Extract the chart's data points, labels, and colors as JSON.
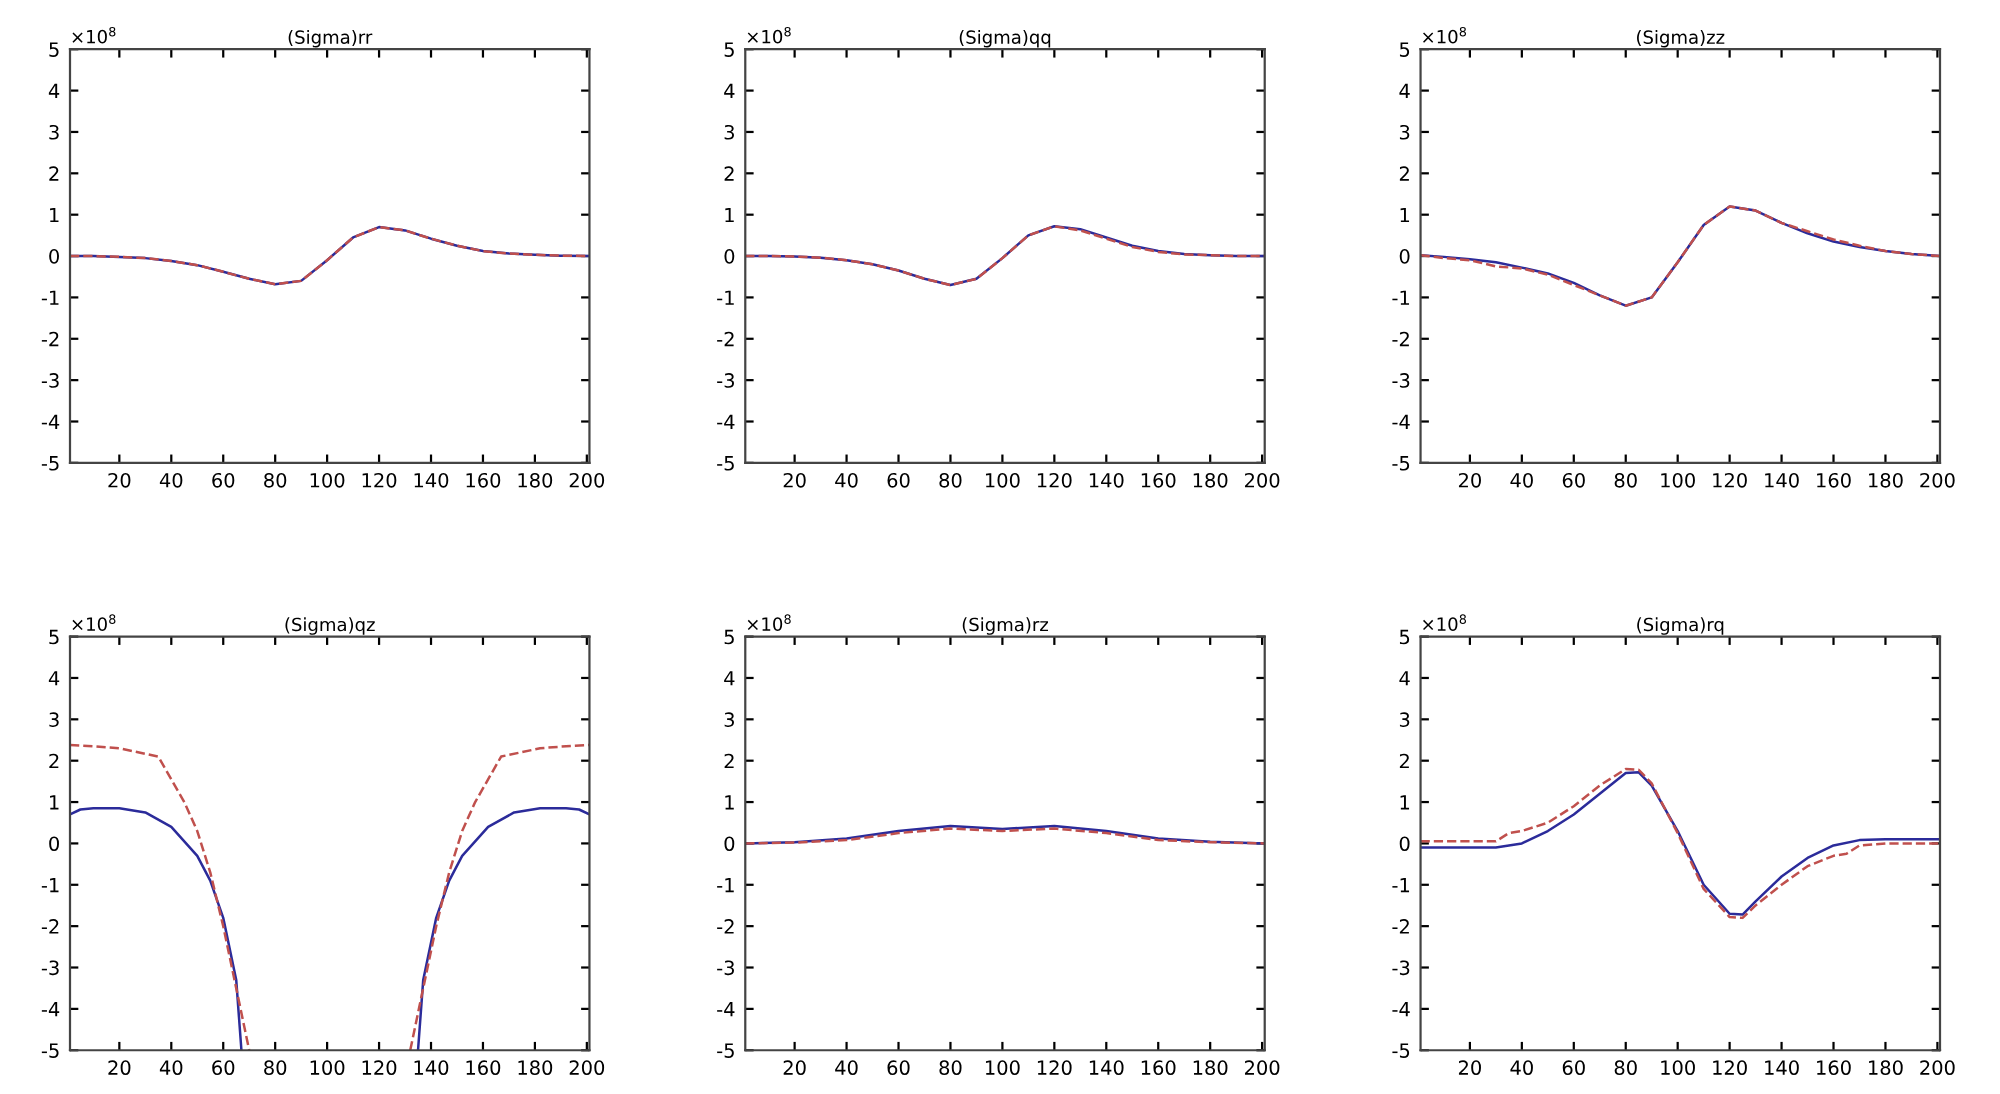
{
  "chart_data": [
    {
      "type": "line",
      "title": "(Sigma)rr",
      "annotations": [
        "×10$^{8}$"
      ],
      "xlim": [
        1,
        201
      ],
      "xticks": [
        20,
        40,
        60,
        80,
        100,
        120,
        140,
        160,
        180,
        200
      ],
      "ylim": [
        -5,
        5
      ],
      "yticks": [
        -5,
        -4,
        -3,
        -2,
        -1,
        0,
        1,
        2,
        3,
        4,
        5
      ],
      "grid": false,
      "legend": false,
      "x": [
        1,
        10,
        20,
        30,
        40,
        50,
        60,
        70,
        80,
        90,
        100,
        110,
        120,
        130,
        140,
        150,
        160,
        170,
        180,
        190,
        201
      ],
      "series": [
        {
          "color": "#2b2b9a",
          "line_style": "solid",
          "values": [
            0,
            0,
            -0.02,
            -0.05,
            -0.12,
            -0.22,
            -0.38,
            -0.55,
            -0.68,
            -0.6,
            -0.1,
            0.45,
            0.7,
            0.62,
            0.42,
            0.25,
            0.12,
            0.06,
            0.03,
            0.01,
            0
          ]
        },
        {
          "color": "#c0504d",
          "line_style": "dashed",
          "values": [
            0,
            0,
            -0.02,
            -0.05,
            -0.12,
            -0.22,
            -0.38,
            -0.55,
            -0.68,
            -0.6,
            -0.1,
            0.45,
            0.7,
            0.62,
            0.42,
            0.25,
            0.12,
            0.06,
            0.03,
            0.01,
            0
          ]
        }
      ]
    },
    {
      "type": "line",
      "title": "(Sigma)qq",
      "annotations": [
        "×10$^{8}$"
      ],
      "xlim": [
        1,
        201
      ],
      "xticks": [
        20,
        40,
        60,
        80,
        100,
        120,
        140,
        160,
        180,
        200
      ],
      "ylim": [
        -5,
        5
      ],
      "yticks": [
        -5,
        -4,
        -3,
        -2,
        -1,
        0,
        1,
        2,
        3,
        4,
        5
      ],
      "grid": false,
      "legend": false,
      "x": [
        1,
        10,
        20,
        30,
        40,
        50,
        60,
        70,
        80,
        90,
        100,
        110,
        120,
        130,
        140,
        150,
        160,
        170,
        180,
        190,
        201
      ],
      "series": [
        {
          "color": "#2b2b9a",
          "line_style": "solid",
          "values": [
            0,
            0,
            -0.01,
            -0.04,
            -0.1,
            -0.2,
            -0.35,
            -0.55,
            -0.7,
            -0.55,
            -0.05,
            0.5,
            0.72,
            0.65,
            0.45,
            0.25,
            0.12,
            0.05,
            0.02,
            0,
            0
          ]
        },
        {
          "color": "#c0504d",
          "line_style": "dashed",
          "values": [
            0,
            0,
            -0.01,
            -0.04,
            -0.1,
            -0.2,
            -0.35,
            -0.55,
            -0.7,
            -0.55,
            -0.05,
            0.5,
            0.72,
            0.62,
            0.42,
            0.22,
            0.1,
            0.04,
            0.02,
            0,
            0
          ]
        }
      ]
    },
    {
      "type": "line",
      "title": "(Sigma)zz",
      "annotations": [
        "×10$^{8}$"
      ],
      "xlim": [
        1,
        201
      ],
      "xticks": [
        20,
        40,
        60,
        80,
        100,
        120,
        140,
        160,
        180,
        200
      ],
      "ylim": [
        -5,
        5
      ],
      "yticks": [
        -5,
        -4,
        -3,
        -2,
        -1,
        0,
        1,
        2,
        3,
        4,
        5
      ],
      "grid": false,
      "legend": false,
      "x": [
        1,
        10,
        20,
        30,
        40,
        50,
        60,
        70,
        80,
        90,
        100,
        110,
        120,
        130,
        140,
        150,
        160,
        170,
        180,
        190,
        201
      ],
      "series": [
        {
          "color": "#2b2b9a",
          "line_style": "solid",
          "values": [
            0.02,
            -0.02,
            -0.08,
            -0.15,
            -0.28,
            -0.42,
            -0.65,
            -0.95,
            -1.2,
            -1.0,
            -0.15,
            0.75,
            1.2,
            1.1,
            0.8,
            0.55,
            0.35,
            0.22,
            0.12,
            0.05,
            0
          ]
        },
        {
          "color": "#c0504d",
          "line_style": "dashed",
          "values": [
            0.02,
            -0.05,
            -0.1,
            -0.25,
            -0.3,
            -0.45,
            -0.7,
            -0.95,
            -1.2,
            -1.0,
            -0.15,
            0.75,
            1.2,
            1.1,
            0.8,
            0.6,
            0.4,
            0.25,
            0.12,
            0.05,
            0
          ]
        }
      ]
    },
    {
      "type": "line",
      "title": "(Sigma)qz",
      "annotations": [
        "×10$^{8}$"
      ],
      "xlim": [
        1,
        201
      ],
      "xticks": [
        20,
        40,
        60,
        80,
        100,
        120,
        140,
        160,
        180,
        200
      ],
      "ylim": [
        -5,
        5
      ],
      "yticks": [
        -5,
        -4,
        -3,
        -2,
        -1,
        0,
        1,
        2,
        3,
        4,
        5
      ],
      "grid": false,
      "legend": false,
      "series": [
        {
          "color": "#2b2b9a",
          "line_style": "solid",
          "x": [
            1,
            5,
            10,
            20,
            30,
            40,
            50,
            55,
            60,
            65,
            67,
            100,
            135,
            137,
            142,
            147,
            152,
            162,
            172,
            182,
            192,
            197,
            201
          ],
          "values": [
            0.7,
            0.82,
            0.85,
            0.85,
            0.75,
            0.4,
            -0.3,
            -0.9,
            -1.8,
            -3.3,
            -5,
            null,
            -5,
            -3.3,
            -1.8,
            -0.9,
            -0.3,
            0.4,
            0.75,
            0.85,
            0.85,
            0.82,
            0.7
          ]
        },
        {
          "color": "#c0504d",
          "line_style": "dashed",
          "x": [
            1,
            10,
            20,
            35,
            45,
            50,
            55,
            60,
            65,
            70,
            100,
            132,
            137,
            142,
            147,
            152,
            157,
            167,
            182,
            192,
            201
          ],
          "values": [
            2.38,
            2.35,
            2.3,
            2.1,
            1.0,
            0.3,
            -0.7,
            -2.0,
            -3.5,
            -5,
            null,
            -5,
            -3.5,
            -2.0,
            -0.7,
            0.3,
            1.0,
            2.1,
            2.3,
            2.35,
            2.38
          ]
        }
      ]
    },
    {
      "type": "line",
      "title": "(Sigma)rz",
      "annotations": [
        "×10$^{8}$"
      ],
      "xlim": [
        1,
        201
      ],
      "xticks": [
        20,
        40,
        60,
        80,
        100,
        120,
        140,
        160,
        180,
        200
      ],
      "ylim": [
        -5,
        5
      ],
      "yticks": [
        -5,
        -4,
        -3,
        -2,
        -1,
        0,
        1,
        2,
        3,
        4,
        5
      ],
      "grid": false,
      "legend": false,
      "x": [
        1,
        20,
        40,
        60,
        80,
        100,
        120,
        140,
        160,
        180,
        201
      ],
      "series": [
        {
          "color": "#2b2b9a",
          "line_style": "solid",
          "values": [
            0,
            0.03,
            0.12,
            0.3,
            0.42,
            0.35,
            0.42,
            0.3,
            0.12,
            0.04,
            0
          ]
        },
        {
          "color": "#c0504d",
          "line_style": "dashed",
          "values": [
            0,
            0.02,
            0.08,
            0.25,
            0.36,
            0.3,
            0.36,
            0.25,
            0.08,
            0.03,
            0
          ]
        }
      ]
    },
    {
      "type": "line",
      "title": "(Sigma)rq",
      "annotations": [
        "×10$^{8}$"
      ],
      "xlim": [
        1,
        201
      ],
      "xticks": [
        20,
        40,
        60,
        80,
        100,
        120,
        140,
        160,
        180,
        200
      ],
      "ylim": [
        -5,
        5
      ],
      "yticks": [
        -5,
        -4,
        -3,
        -2,
        -1,
        0,
        1,
        2,
        3,
        4,
        5
      ],
      "grid": false,
      "legend": false,
      "series": [
        {
          "color": "#2b2b9a",
          "line_style": "solid",
          "x": [
            1,
            20,
            30,
            40,
            50,
            60,
            70,
            80,
            85,
            90,
            100,
            110,
            120,
            125,
            130,
            140,
            150,
            160,
            170,
            180,
            201
          ],
          "values": [
            -0.1,
            -0.1,
            -0.1,
            0,
            0.3,
            0.7,
            1.2,
            1.7,
            1.72,
            1.4,
            0.3,
            -1.0,
            -1.7,
            -1.72,
            -1.4,
            -0.8,
            -0.35,
            -0.05,
            0.08,
            0.1,
            0.1
          ]
        },
        {
          "color": "#c0504d",
          "line_style": "dashed",
          "x": [
            1,
            20,
            30,
            35,
            40,
            50,
            60,
            70,
            80,
            85,
            90,
            100,
            110,
            120,
            125,
            130,
            140,
            150,
            160,
            165,
            170,
            180,
            201
          ],
          "values": [
            0.05,
            0.05,
            0.05,
            0.25,
            0.3,
            0.5,
            0.9,
            1.4,
            1.8,
            1.78,
            1.45,
            0.25,
            -1.1,
            -1.78,
            -1.8,
            -1.5,
            -1.0,
            -0.55,
            -0.3,
            -0.25,
            -0.05,
            0,
            0
          ]
        }
      ]
    }
  ]
}
